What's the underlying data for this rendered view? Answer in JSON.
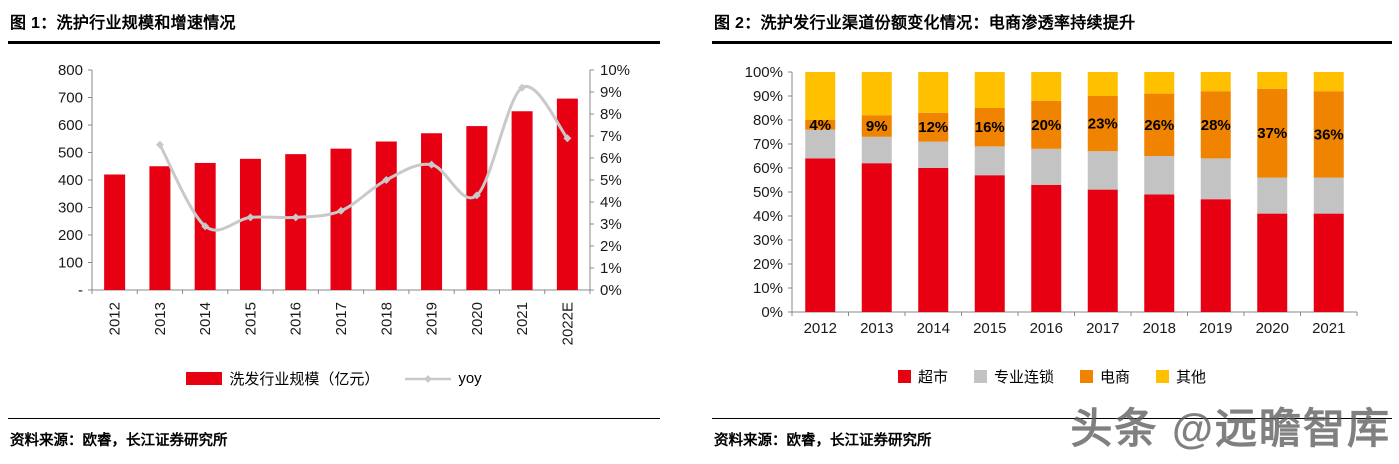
{
  "watermark": "头条 @远瞻智库",
  "figure1": {
    "title": "图 1：洗护行业规模和增速情况",
    "source": "资料来源：欧睿，长江证券研究所"
  },
  "figure2": {
    "title": "图 2：洗护发行业渠道份额变化情况：电商渗透率持续提升",
    "source": "资料来源：欧睿，长江证券研究所"
  },
  "chart_data": [
    {
      "type": "bar",
      "subtype": "combo-bar-line",
      "title": "图 1：洗护行业规模和增速情况",
      "categories": [
        "2012",
        "2013",
        "2014",
        "2015",
        "2016",
        "2017",
        "2018",
        "2019",
        "2020",
        "2021",
        "2022E"
      ],
      "series": [
        {
          "name": "洗发行业规模（亿元）",
          "type": "bar",
          "axis": "left",
          "color": "#e60012",
          "values": [
            420,
            450,
            462,
            477,
            494,
            514,
            540,
            570,
            596,
            650,
            696
          ]
        },
        {
          "name": "yoy",
          "type": "line",
          "axis": "right",
          "color": "#c9c9c9",
          "values": [
            null,
            6.6,
            2.9,
            3.3,
            3.3,
            3.6,
            5.0,
            5.7,
            4.3,
            9.2,
            6.9
          ]
        }
      ],
      "left_axis": {
        "min": 0,
        "max": 800,
        "step": 100,
        "labels": [
          "-",
          "100",
          "200",
          "300",
          "400",
          "500",
          "600",
          "700",
          "800"
        ]
      },
      "right_axis": {
        "min": 0,
        "max": 10,
        "step": 1,
        "labels": [
          "0%",
          "1%",
          "2%",
          "3%",
          "4%",
          "5%",
          "6%",
          "7%",
          "8%",
          "9%",
          "10%"
        ]
      },
      "grid": false,
      "legend_position": "bottom"
    },
    {
      "type": "bar",
      "subtype": "stacked-bar-100",
      "title": "图 2：洗护发行业渠道份额变化情况：电商渗透率持续提升",
      "categories": [
        "2012",
        "2013",
        "2014",
        "2015",
        "2016",
        "2017",
        "2018",
        "2019",
        "2020",
        "2021"
      ],
      "series": [
        {
          "name": "超市",
          "color": "#e60012",
          "values": [
            64,
            62,
            60,
            57,
            53,
            51,
            49,
            47,
            41,
            41
          ]
        },
        {
          "name": "专业连锁",
          "color": "#c3c3c3",
          "values": [
            12,
            11,
            11,
            12,
            15,
            16,
            16,
            17,
            15,
            15
          ]
        },
        {
          "name": "电商",
          "color": "#f08300",
          "values": [
            4,
            9,
            12,
            16,
            20,
            23,
            26,
            28,
            37,
            36
          ]
        },
        {
          "name": "其他",
          "color": "#ffc000",
          "values": [
            20,
            18,
            17,
            15,
            12,
            10,
            9,
            8,
            7,
            8
          ]
        }
      ],
      "bar_labels": [
        "4%",
        "9%",
        "12%",
        "16%",
        "20%",
        "23%",
        "26%",
        "28%",
        "37%",
        "36%"
      ],
      "y_axis": {
        "min": 0,
        "max": 100,
        "step": 10,
        "labels": [
          "0%",
          "10%",
          "20%",
          "30%",
          "40%",
          "50%",
          "60%",
          "70%",
          "80%",
          "90%",
          "100%"
        ]
      },
      "grid": false,
      "legend_position": "bottom"
    }
  ]
}
